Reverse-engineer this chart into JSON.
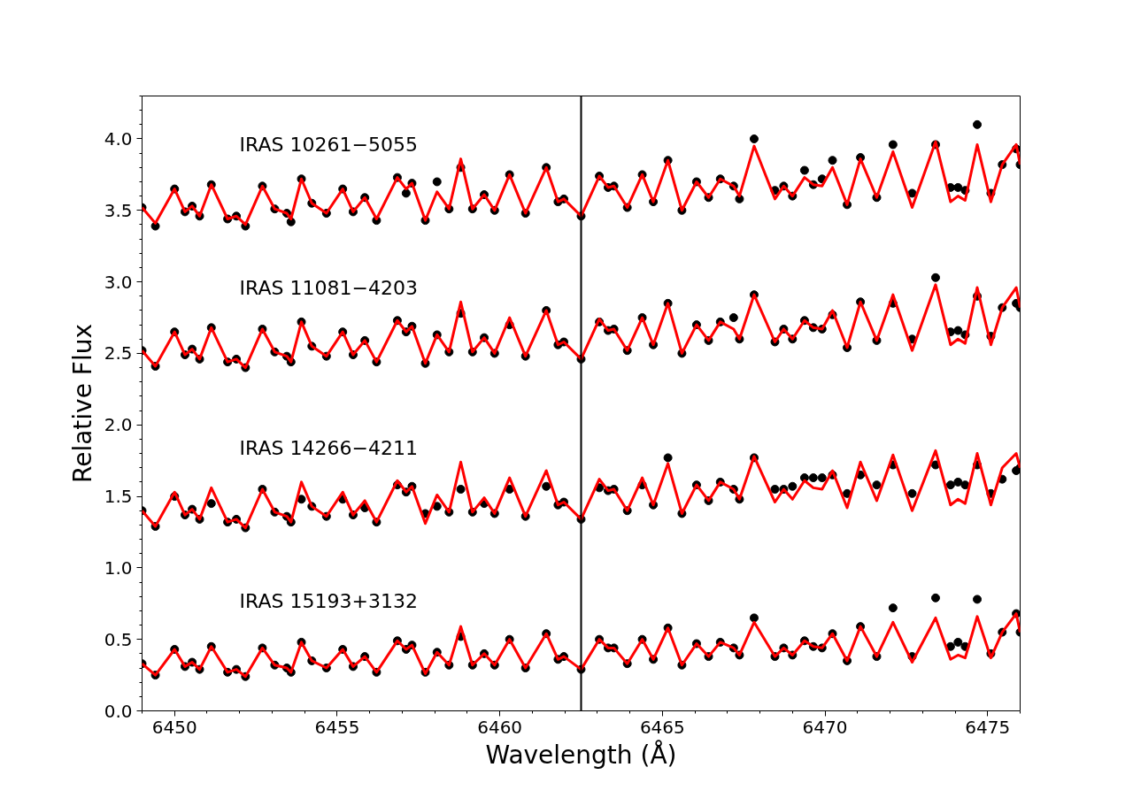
{
  "chart_data": {
    "type": "line",
    "xlabel": "Wavelength (Å)",
    "ylabel": "Relative Flux",
    "xlim": [
      6449,
      6476
    ],
    "ylim": [
      0,
      4.3
    ],
    "xticks": [
      6450,
      6455,
      6460,
      6465,
      6470,
      6475
    ],
    "yticks": [
      {
        "value": 0,
        "label": "0.0"
      },
      0.5,
      {
        "value": 1,
        "label": "1.0"
      },
      1.5,
      {
        "value": 2,
        "label": "2.0"
      },
      2.5,
      {
        "value": 3,
        "label": "3.0"
      },
      3.5,
      {
        "value": 4,
        "label": "4.0"
      }
    ],
    "grid": false,
    "line_style": "solid",
    "x": [
      6449.0,
      6449.41,
      6450.0,
      6450.32,
      6450.54,
      6450.77,
      6451.13,
      6451.63,
      6451.9,
      6452.18,
      6452.7,
      6453.08,
      6453.45,
      6453.58,
      6453.9,
      6454.22,
      6454.67,
      6455.17,
      6455.49,
      6455.85,
      6456.21,
      6456.85,
      6457.12,
      6457.3,
      6457.71,
      6458.07,
      6458.44,
      6458.8,
      6459.16,
      6459.52,
      6459.84,
      6460.3,
      6460.79,
      6461.43,
      6461.79,
      6461.97,
      6462.5,
      6463.06,
      6463.33,
      6463.51,
      6463.92,
      6464.38,
      6464.72,
      6465.17,
      6465.6,
      6466.05,
      6466.42,
      6466.78,
      6467.19,
      6467.37,
      6467.82,
      6468.46,
      6468.73,
      6469.0,
      6469.37,
      6469.64,
      6469.91,
      6470.23,
      6470.68,
      6471.09,
      6471.59,
      6472.09,
      6472.68,
      6473.4,
      6473.86,
      6474.09,
      6474.31,
      6474.68,
      6475.1,
      6475.45,
      6475.88,
      6476.0
    ],
    "series": [
      {
        "type": "scatter",
        "marker": "circle",
        "color": "#000000",
        "values": [
          3.52,
          3.39,
          3.65,
          3.49,
          3.53,
          3.46,
          3.68,
          3.44,
          3.46,
          3.39,
          3.67,
          3.51,
          3.48,
          3.42,
          3.72,
          3.55,
          3.48,
          3.65,
          3.49,
          3.59,
          3.43,
          3.73,
          3.62,
          3.69,
          3.43,
          3.7,
          3.51,
          3.8,
          3.51,
          3.61,
          3.5,
          3.75,
          3.48,
          3.8,
          3.56,
          3.58,
          3.46,
          3.74,
          3.66,
          3.67,
          3.52,
          3.75,
          3.56,
          3.85,
          3.5,
          3.7,
          3.59,
          3.72,
          3.67,
          3.58,
          4.0,
          3.64,
          3.67,
          3.6,
          3.78,
          3.68,
          3.72,
          3.85,
          3.54,
          3.87,
          3.59,
          3.96,
          3.62,
          3.96,
          3.66,
          3.66,
          3.64,
          4.1,
          3.62,
          3.82,
          3.93,
          3.82
        ]
      },
      {
        "color": "#ff0000",
        "values": [
          3.52,
          3.41,
          3.65,
          3.49,
          3.53,
          3.46,
          3.68,
          3.44,
          3.46,
          3.4,
          3.67,
          3.51,
          3.48,
          3.44,
          3.72,
          3.55,
          3.48,
          3.65,
          3.49,
          3.59,
          3.44,
          3.73,
          3.65,
          3.69,
          3.43,
          3.63,
          3.51,
          3.86,
          3.51,
          3.61,
          3.5,
          3.75,
          3.48,
          3.8,
          3.56,
          3.58,
          3.46,
          3.74,
          3.66,
          3.67,
          3.52,
          3.75,
          3.56,
          3.85,
          3.5,
          3.7,
          3.59,
          3.72,
          3.67,
          3.6,
          3.95,
          3.58,
          3.67,
          3.6,
          3.73,
          3.68,
          3.67,
          3.8,
          3.54,
          3.86,
          3.59,
          3.91,
          3.52,
          3.98,
          3.56,
          3.6,
          3.57,
          3.96,
          3.56,
          3.82,
          3.96,
          3.82
        ]
      },
      {
        "type": "scatter",
        "marker": "circle",
        "color": "#000000",
        "values": [
          2.52,
          2.41,
          2.65,
          2.49,
          2.53,
          2.46,
          2.68,
          2.44,
          2.46,
          2.4,
          2.67,
          2.51,
          2.48,
          2.44,
          2.72,
          2.55,
          2.48,
          2.65,
          2.49,
          2.59,
          2.44,
          2.73,
          2.65,
          2.69,
          2.43,
          2.63,
          2.51,
          2.78,
          2.51,
          2.61,
          2.5,
          2.7,
          2.48,
          2.8,
          2.56,
          2.58,
          2.46,
          2.72,
          2.66,
          2.67,
          2.52,
          2.75,
          2.56,
          2.85,
          2.5,
          2.7,
          2.59,
          2.72,
          2.75,
          2.6,
          2.91,
          2.58,
          2.67,
          2.6,
          2.73,
          2.68,
          2.67,
          2.77,
          2.54,
          2.86,
          2.59,
          2.85,
          2.6,
          3.03,
          2.65,
          2.66,
          2.63,
          2.9,
          2.62,
          2.82,
          2.85,
          2.82
        ]
      },
      {
        "color": "#ff0000",
        "values": [
          2.52,
          2.41,
          2.65,
          2.49,
          2.53,
          2.46,
          2.68,
          2.44,
          2.46,
          2.4,
          2.67,
          2.51,
          2.48,
          2.44,
          2.72,
          2.55,
          2.48,
          2.65,
          2.49,
          2.59,
          2.44,
          2.73,
          2.65,
          2.69,
          2.43,
          2.63,
          2.51,
          2.86,
          2.51,
          2.61,
          2.5,
          2.75,
          2.48,
          2.8,
          2.56,
          2.58,
          2.46,
          2.74,
          2.66,
          2.67,
          2.52,
          2.75,
          2.56,
          2.85,
          2.5,
          2.7,
          2.59,
          2.72,
          2.67,
          2.6,
          2.91,
          2.58,
          2.67,
          2.6,
          2.73,
          2.68,
          2.67,
          2.8,
          2.54,
          2.86,
          2.59,
          2.91,
          2.52,
          2.98,
          2.56,
          2.6,
          2.57,
          2.96,
          2.56,
          2.82,
          2.96,
          2.82
        ]
      },
      {
        "type": "scatter",
        "marker": "circle",
        "color": "#000000",
        "values": [
          1.4,
          1.29,
          1.5,
          1.37,
          1.41,
          1.34,
          1.45,
          1.32,
          1.34,
          1.28,
          1.55,
          1.39,
          1.36,
          1.32,
          1.48,
          1.43,
          1.36,
          1.48,
          1.37,
          1.42,
          1.32,
          1.58,
          1.53,
          1.57,
          1.38,
          1.43,
          1.39,
          1.55,
          1.39,
          1.45,
          1.38,
          1.55,
          1.36,
          1.57,
          1.44,
          1.46,
          1.34,
          1.56,
          1.54,
          1.55,
          1.4,
          1.58,
          1.44,
          1.77,
          1.38,
          1.58,
          1.47,
          1.6,
          1.55,
          1.48,
          1.77,
          1.55,
          1.55,
          1.57,
          1.63,
          1.63,
          1.63,
          1.65,
          1.52,
          1.65,
          1.58,
          1.72,
          1.52,
          1.72,
          1.58,
          1.6,
          1.58,
          1.72,
          1.52,
          1.62,
          1.68,
          1.7
        ]
      },
      {
        "color": "#ff0000",
        "values": [
          1.4,
          1.29,
          1.53,
          1.37,
          1.41,
          1.34,
          1.56,
          1.32,
          1.34,
          1.28,
          1.55,
          1.39,
          1.36,
          1.32,
          1.6,
          1.43,
          1.36,
          1.53,
          1.37,
          1.47,
          1.32,
          1.61,
          1.53,
          1.57,
          1.31,
          1.51,
          1.39,
          1.74,
          1.39,
          1.49,
          1.38,
          1.63,
          1.36,
          1.68,
          1.44,
          1.46,
          1.34,
          1.62,
          1.54,
          1.55,
          1.4,
          1.63,
          1.44,
          1.73,
          1.38,
          1.58,
          1.47,
          1.6,
          1.55,
          1.48,
          1.78,
          1.46,
          1.55,
          1.48,
          1.61,
          1.56,
          1.55,
          1.68,
          1.42,
          1.74,
          1.47,
          1.79,
          1.4,
          1.82,
          1.44,
          1.48,
          1.45,
          1.8,
          1.44,
          1.7,
          1.8,
          1.7
        ]
      },
      {
        "type": "scatter",
        "marker": "circle",
        "color": "#000000",
        "values": [
          0.33,
          0.25,
          0.43,
          0.31,
          0.34,
          0.29,
          0.45,
          0.27,
          0.29,
          0.24,
          0.44,
          0.32,
          0.3,
          0.27,
          0.48,
          0.35,
          0.3,
          0.43,
          0.31,
          0.38,
          0.27,
          0.49,
          0.43,
          0.46,
          0.27,
          0.41,
          0.32,
          0.52,
          0.32,
          0.4,
          0.32,
          0.5,
          0.3,
          0.54,
          0.36,
          0.38,
          0.29,
          0.5,
          0.44,
          0.44,
          0.33,
          0.5,
          0.36,
          0.58,
          0.32,
          0.47,
          0.38,
          0.48,
          0.44,
          0.39,
          0.65,
          0.38,
          0.44,
          0.39,
          0.49,
          0.45,
          0.44,
          0.54,
          0.35,
          0.59,
          0.38,
          0.72,
          0.38,
          0.79,
          0.45,
          0.48,
          0.45,
          0.78,
          0.4,
          0.55,
          0.68,
          0.55
        ]
      },
      {
        "color": "#ff0000",
        "values": [
          0.33,
          0.25,
          0.43,
          0.31,
          0.34,
          0.29,
          0.45,
          0.27,
          0.29,
          0.24,
          0.44,
          0.32,
          0.3,
          0.27,
          0.48,
          0.35,
          0.3,
          0.43,
          0.31,
          0.38,
          0.27,
          0.49,
          0.43,
          0.46,
          0.26,
          0.41,
          0.32,
          0.59,
          0.32,
          0.4,
          0.32,
          0.5,
          0.3,
          0.54,
          0.36,
          0.38,
          0.29,
          0.5,
          0.44,
          0.44,
          0.33,
          0.5,
          0.36,
          0.58,
          0.32,
          0.47,
          0.38,
          0.48,
          0.44,
          0.39,
          0.62,
          0.38,
          0.44,
          0.39,
          0.49,
          0.45,
          0.44,
          0.54,
          0.35,
          0.59,
          0.38,
          0.62,
          0.34,
          0.65,
          0.36,
          0.39,
          0.37,
          0.66,
          0.37,
          0.55,
          0.68,
          0.55
        ]
      }
    ],
    "ref_lines": [
      {
        "axis": "x",
        "value": 6462.5,
        "color": "#000000"
      }
    ],
    "annotations": [
      "IRAS 10261−5055",
      "IRAS 11081−4203",
      "IRAS 14266−4211",
      "IRAS 15193+3132"
    ]
  }
}
